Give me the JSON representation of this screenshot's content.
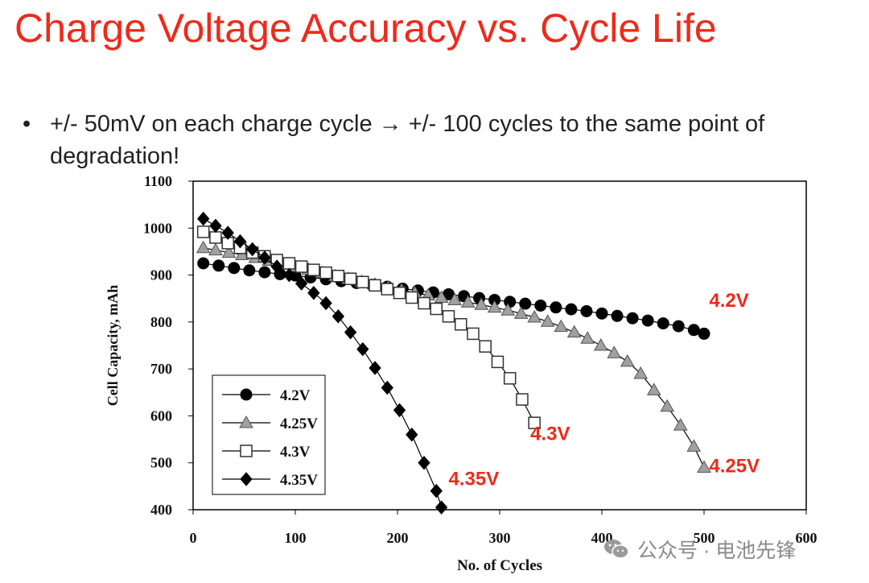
{
  "slide": {
    "title": "Charge Voltage Accuracy vs. Cycle Life",
    "bullet_symbol": "•",
    "bullet_text": "+/- 50mV on each charge cycle → +/- 100 cycles to the same point of degradation!"
  },
  "watermark": {
    "text": "公众号 · 电池先锋",
    "icon": "wechat-icon"
  },
  "chart_data": {
    "type": "line",
    "xlabel": "No. of Cycles",
    "ylabel": "Cell Capacity, mAh",
    "xlim": [
      0,
      600
    ],
    "ylim": [
      400,
      1100
    ],
    "x_ticks": [
      "0",
      "100",
      "200",
      "300",
      "400",
      "500",
      "600"
    ],
    "y_ticks": [
      "400",
      "500",
      "600",
      "700",
      "800",
      "900",
      "1000",
      "1100"
    ],
    "grid": false,
    "legend_position": "bottom-left",
    "series": [
      {
        "name": "4.2V",
        "marker": "circle",
        "color": "#000000",
        "end_label": "4.2V",
        "x": [
          10,
          25,
          40,
          55,
          70,
          85,
          100,
          115,
          130,
          145,
          160,
          175,
          190,
          205,
          220,
          235,
          250,
          265,
          280,
          295,
          310,
          325,
          340,
          355,
          370,
          385,
          400,
          415,
          430,
          445,
          460,
          475,
          490,
          500
        ],
        "y": [
          925,
          920,
          915,
          910,
          906,
          902,
          899,
          895,
          891,
          887,
          883,
          879,
          875,
          871,
          867,
          863,
          859,
          855,
          851,
          847,
          843,
          839,
          835,
          831,
          827,
          823,
          818,
          813,
          808,
          803,
          797,
          791,
          783,
          775
        ]
      },
      {
        "name": "4.25V",
        "marker": "triangle",
        "color": "#a0a0a0",
        "end_label": "4.25V",
        "x": [
          10,
          22,
          35,
          48,
          61,
          74,
          87,
          100,
          113,
          126,
          139,
          152,
          165,
          178,
          191,
          204,
          217,
          230,
          243,
          256,
          269,
          282,
          295,
          308,
          321,
          334,
          347,
          360,
          373,
          386,
          399,
          412,
          425,
          438,
          451,
          464,
          477,
          490,
          500
        ],
        "y": [
          958,
          953,
          948,
          943,
          937,
          931,
          925,
          918,
          912,
          905,
          898,
          892,
          886,
          880,
          874,
          868,
          862,
          857,
          852,
          847,
          842,
          837,
          831,
          825,
          818,
          810,
          801,
          790,
          778,
          765,
          750,
          734,
          716,
          690,
          655,
          620,
          580,
          535,
          490
        ]
      },
      {
        "name": "4.3V",
        "marker": "square",
        "color": "#ffffff",
        "end_label": "4.3V",
        "x": [
          10,
          22,
          34,
          46,
          58,
          70,
          82,
          94,
          106,
          118,
          130,
          142,
          154,
          166,
          178,
          190,
          202,
          214,
          226,
          238,
          250,
          262,
          274,
          286,
          298,
          310,
          322,
          334
        ],
        "y": [
          992,
          980,
          968,
          958,
          948,
          940,
          932,
          925,
          918,
          911,
          905,
          898,
          892,
          885,
          878,
          870,
          862,
          852,
          840,
          828,
          812,
          795,
          775,
          748,
          715,
          680,
          635,
          585
        ]
      },
      {
        "name": "4.35V",
        "marker": "diamond",
        "color": "#000000",
        "end_label": "4.35V",
        "x": [
          10,
          22,
          34,
          46,
          58,
          70,
          82,
          94,
          106,
          118,
          130,
          142,
          154,
          166,
          178,
          190,
          202,
          214,
          226,
          238,
          243
        ],
        "y": [
          1020,
          1005,
          990,
          972,
          955,
          937,
          918,
          900,
          882,
          862,
          840,
          812,
          778,
          742,
          702,
          660,
          612,
          560,
          500,
          440,
          405
        ]
      }
    ],
    "annotations": [
      {
        "text": "4.2V",
        "series": "4.2V",
        "x": 505,
        "y": 832,
        "color": "#ee2a1b"
      },
      {
        "text": "4.3V",
        "series": "4.3V",
        "x": 330,
        "y": 548,
        "color": "#ee2a1b"
      },
      {
        "text": "4.25V",
        "series": "4.25V",
        "x": 505,
        "y": 480,
        "color": "#ee2a1b"
      },
      {
        "text": "4.35V",
        "series": "4.35V",
        "x": 250,
        "y": 452,
        "color": "#ee2a1b"
      }
    ]
  }
}
